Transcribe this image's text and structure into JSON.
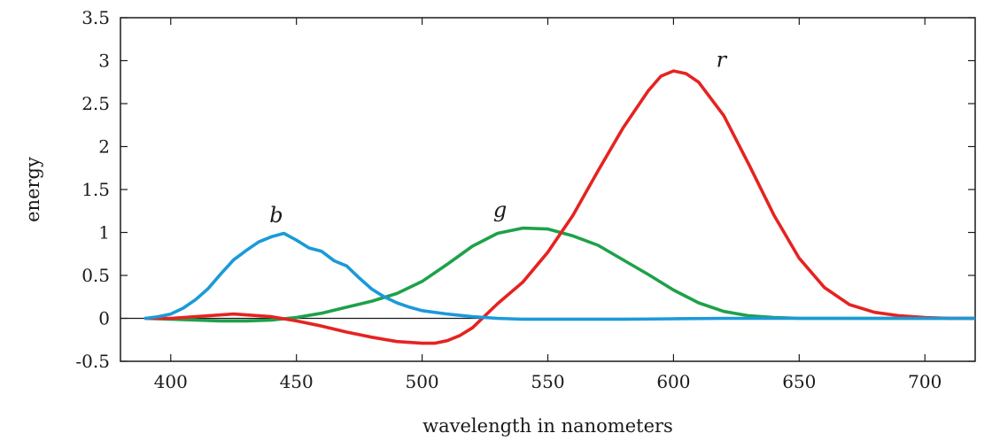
{
  "chart_data": {
    "type": "line",
    "title": "",
    "xlabel": "wavelength in nanometers",
    "ylabel": "energy",
    "xlim": [
      380,
      720
    ],
    "ylim": [
      -0.5,
      3.5
    ],
    "xticks": [
      "400",
      "450",
      "500",
      "550",
      "600",
      "650",
      "700"
    ],
    "xtick_values": [
      400,
      450,
      500,
      550,
      600,
      650,
      700
    ],
    "yticks": [
      "-0.5",
      "0",
      "0.5",
      "1",
      "1.5",
      "2",
      "2.5",
      "3",
      "3.5"
    ],
    "ytick_values": [
      -0.5,
      0,
      0.5,
      1,
      1.5,
      2,
      2.5,
      3,
      3.5
    ],
    "grid": false,
    "zero_line": true,
    "series": [
      {
        "name": "b",
        "color": "#1a9ad9",
        "x": [
          390,
          395,
          400,
          405,
          410,
          415,
          420,
          425,
          430,
          435,
          440,
          445,
          450,
          455,
          460,
          465,
          470,
          475,
          480,
          485,
          490,
          495,
          500,
          510,
          520,
          530,
          540,
          560,
          580,
          600,
          620,
          640,
          660,
          680,
          700,
          720
        ],
        "y": [
          0.0,
          0.02,
          0.05,
          0.12,
          0.22,
          0.35,
          0.52,
          0.68,
          0.79,
          0.89,
          0.95,
          0.99,
          0.91,
          0.82,
          0.78,
          0.67,
          0.61,
          0.47,
          0.34,
          0.25,
          0.18,
          0.13,
          0.09,
          0.05,
          0.02,
          0.0,
          -0.01,
          -0.01,
          -0.01,
          -0.005,
          0.0,
          0.0,
          0.0,
          0.0,
          0.0,
          0.0
        ]
      },
      {
        "name": "g",
        "color": "#1ea14a",
        "x": [
          390,
          400,
          410,
          420,
          430,
          440,
          450,
          460,
          470,
          480,
          490,
          500,
          510,
          520,
          530,
          540,
          550,
          560,
          570,
          580,
          590,
          600,
          610,
          620,
          630,
          640,
          650,
          660,
          680,
          700,
          720
        ],
        "y": [
          0.0,
          -0.01,
          -0.02,
          -0.03,
          -0.03,
          -0.02,
          0.01,
          0.06,
          0.13,
          0.2,
          0.29,
          0.43,
          0.63,
          0.84,
          0.99,
          1.05,
          1.04,
          0.96,
          0.85,
          0.68,
          0.51,
          0.33,
          0.18,
          0.08,
          0.03,
          0.01,
          0.0,
          0.0,
          0.0,
          0.0,
          0.0
        ]
      },
      {
        "name": "r",
        "color": "#e52321",
        "x": [
          390,
          400,
          410,
          420,
          425,
          430,
          440,
          450,
          460,
          470,
          480,
          490,
          500,
          505,
          510,
          515,
          520,
          530,
          540,
          550,
          560,
          570,
          580,
          590,
          595,
          600,
          605,
          610,
          620,
          630,
          640,
          650,
          660,
          670,
          680,
          690,
          700,
          710,
          720
        ],
        "y": [
          0.0,
          0.0,
          0.02,
          0.04,
          0.05,
          0.04,
          0.02,
          -0.03,
          -0.09,
          -0.16,
          -0.22,
          -0.27,
          -0.29,
          -0.29,
          -0.26,
          -0.2,
          -0.11,
          0.17,
          0.42,
          0.77,
          1.2,
          1.72,
          2.22,
          2.65,
          2.82,
          2.88,
          2.85,
          2.75,
          2.36,
          1.79,
          1.2,
          0.7,
          0.36,
          0.16,
          0.07,
          0.03,
          0.01,
          0.0,
          0.0
        ]
      }
    ],
    "annotations": [
      {
        "text": "b",
        "x": 442,
        "y": 1.12
      },
      {
        "text": "g",
        "x": 531,
        "y": 1.18
      },
      {
        "text": "r",
        "x": 619,
        "y": 2.93
      }
    ]
  }
}
